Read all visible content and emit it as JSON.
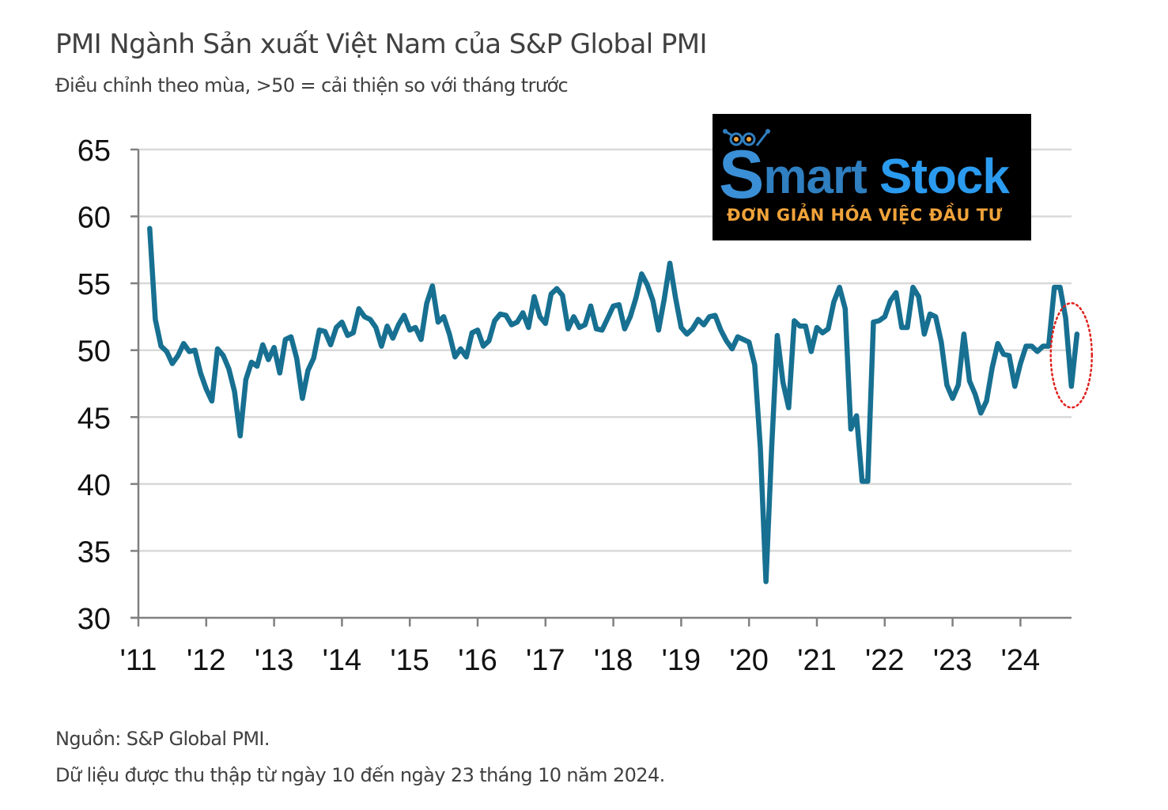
{
  "header": {
    "title": "PMI Ngành Sản xuất Việt Nam của S&P Global PMI",
    "subtitle": "Điều chỉnh theo mùa, >50 = cải thiện so với tháng trước"
  },
  "footer": {
    "source": "Nguồn: S&P Global PMI.",
    "note": "Dữ liệu được thu thập từ ngày 10 đến ngày 23 tháng 10 năm 2024."
  },
  "watermark": {
    "brand_first_letter": "S",
    "brand_rest": "mart",
    "brand_second": "Stock",
    "tagline": "ĐƠN GIẢN HÓA VIỆC ĐẦU TƯ",
    "colors": {
      "background": "#000000",
      "brand_blue": "#2b9bf0",
      "tagline_orange": "#f0a33a"
    }
  },
  "highlight": {
    "type": "dotted-ellipse",
    "color": "#e0201b",
    "marks": "latest months (Aug–Oct 2024)"
  },
  "chart_data": {
    "type": "line",
    "title": "PMI Ngành Sản xuất Việt Nam của S&P Global PMI",
    "subtitle": "Điều chỉnh theo mùa, >50 = cải thiện so với tháng trước",
    "xlabel": "",
    "ylabel": "",
    "ylim": [
      30,
      65
    ],
    "yticks": [
      30,
      35,
      40,
      45,
      50,
      55,
      60,
      65
    ],
    "xtick_labels": [
      "'11",
      "'12",
      "'13",
      "'14",
      "'15",
      "'16",
      "'17",
      "'18",
      "'19",
      "'20",
      "'21",
      "'22",
      "'23",
      "'24"
    ],
    "grid": "horizontal",
    "legend": "none",
    "line_color": "#177091",
    "x_start": "2011-03",
    "x_end": "2024-10",
    "frequency": "monthly",
    "series": [
      {
        "name": "Vietnam Manufacturing PMI",
        "values": [
          59.1,
          52.3,
          50.3,
          49.9,
          49.0,
          49.6,
          50.5,
          49.9,
          50.0,
          48.3,
          47.1,
          46.2,
          50.1,
          49.6,
          48.6,
          46.9,
          43.6,
          47.8,
          49.1,
          48.8,
          50.4,
          49.3,
          50.2,
          48.3,
          50.8,
          51.0,
          49.4,
          46.4,
          48.5,
          49.4,
          51.5,
          51.4,
          50.4,
          51.7,
          52.1,
          51.1,
          51.3,
          53.1,
          52.5,
          52.3,
          51.7,
          50.3,
          51.8,
          50.9,
          51.9,
          52.6,
          51.5,
          51.7,
          50.8,
          53.5,
          54.8,
          52.1,
          52.5,
          51.2,
          49.5,
          50.1,
          49.5,
          51.3,
          51.5,
          50.3,
          50.7,
          52.2,
          52.7,
          52.6,
          51.9,
          52.1,
          52.8,
          51.7,
          54.0,
          52.5,
          52.0,
          54.2,
          54.6,
          54.1,
          51.6,
          52.5,
          51.7,
          51.9,
          53.3,
          51.6,
          51.5,
          52.4,
          53.3,
          53.4,
          51.6,
          52.5,
          53.9,
          55.7,
          54.9,
          53.7,
          51.5,
          53.8,
          56.5,
          53.9,
          51.7,
          51.2,
          51.6,
          52.3,
          51.9,
          52.5,
          52.6,
          51.5,
          50.7,
          50.1,
          51.0,
          50.8,
          50.6,
          48.9,
          42.7,
          32.7,
          42.7,
          51.1,
          47.6,
          45.7,
          52.2,
          51.8,
          51.8,
          49.9,
          51.7,
          51.3,
          51.6,
          53.6,
          54.7,
          53.1,
          44.1,
          45.1,
          40.2,
          40.2,
          52.1,
          52.2,
          52.5,
          53.7,
          54.3,
          51.7,
          51.7,
          54.7,
          54.0,
          51.2,
          52.7,
          52.5,
          50.6,
          47.4,
          46.4,
          47.4,
          51.2,
          47.7,
          46.7,
          45.3,
          46.2,
          48.7,
          50.5,
          49.7,
          49.6,
          47.3,
          49.0,
          50.3,
          50.3,
          49.9,
          50.3,
          50.3,
          54.7,
          54.7,
          52.4,
          47.3,
          51.2
        ]
      }
    ]
  }
}
